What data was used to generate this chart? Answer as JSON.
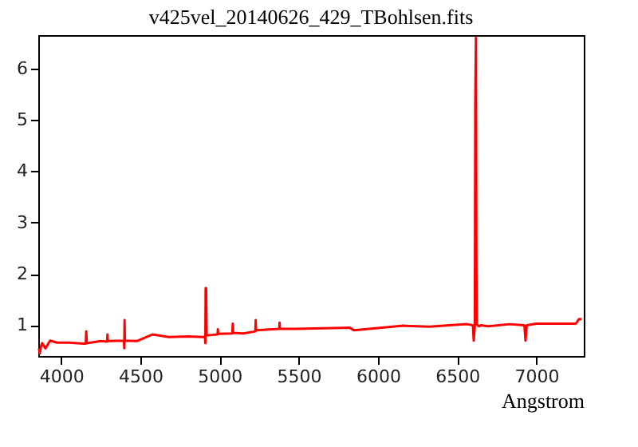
{
  "chart_data": {
    "type": "line",
    "title": "v425vel_20140626_429_TBohlsen.fits",
    "xlabel": "Angstrom",
    "x": [
      3859,
      3865,
      3872,
      3880,
      3900,
      3930,
      3973,
      4050,
      4141,
      4155,
      4158,
      4161,
      4250,
      4290,
      4292,
      4294,
      4396,
      4398,
      4400,
      4402,
      4404,
      4477,
      4578,
      4679,
      4800,
      4898,
      4908,
      4910,
      4912,
      4915,
      4918,
      4920,
      4948,
      4987,
      4989,
      4991,
      5081,
      5083,
      5085,
      5150,
      5226,
      5228,
      5230,
      5377,
      5379,
      5381,
      5486,
      5822,
      5850,
      6159,
      6327,
      6450,
      6563,
      6600,
      6605,
      6612,
      6615,
      6619,
      6622,
      6625,
      6630,
      6640,
      6650,
      6697,
      6831,
      6925,
      6932,
      6940,
      7000,
      7150,
      7250,
      7270,
      7285
    ],
    "series": [
      {
        "color": "#ff0000",
        "values": [
          0.55,
          0.45,
          0.59,
          0.65,
          0.55,
          0.7,
          0.66,
          0.66,
          0.64,
          0.64,
          0.88,
          0.65,
          0.69,
          0.68,
          0.82,
          0.69,
          0.7,
          0.55,
          1.1,
          0.7,
          0.7,
          0.69,
          0.82,
          0.77,
          0.78,
          0.77,
          0.78,
          0.65,
          1.72,
          1.72,
          0.8,
          0.8,
          0.81,
          0.82,
          0.92,
          0.83,
          0.84,
          1.03,
          0.85,
          0.84,
          0.88,
          1.1,
          0.9,
          0.93,
          1.05,
          0.93,
          0.93,
          0.95,
          0.9,
          0.99,
          0.97,
          1.0,
          1.02,
          1.0,
          0.7,
          1.0,
          5.35,
          6.6,
          2.05,
          1.02,
          1.0,
          0.98,
          1.0,
          0.98,
          1.02,
          1.0,
          0.7,
          1.0,
          1.03,
          1.03,
          1.03,
          1.12,
          1.12
        ]
      }
    ],
    "xlim": [
      3855,
      7300
    ],
    "ylim": [
      0.4,
      6.65
    ],
    "xticks": [
      4000,
      4500,
      5000,
      5500,
      6000,
      6500,
      7000
    ],
    "yticks": [
      1,
      2,
      3,
      4,
      5,
      6
    ],
    "grid": false,
    "legend": false
  }
}
